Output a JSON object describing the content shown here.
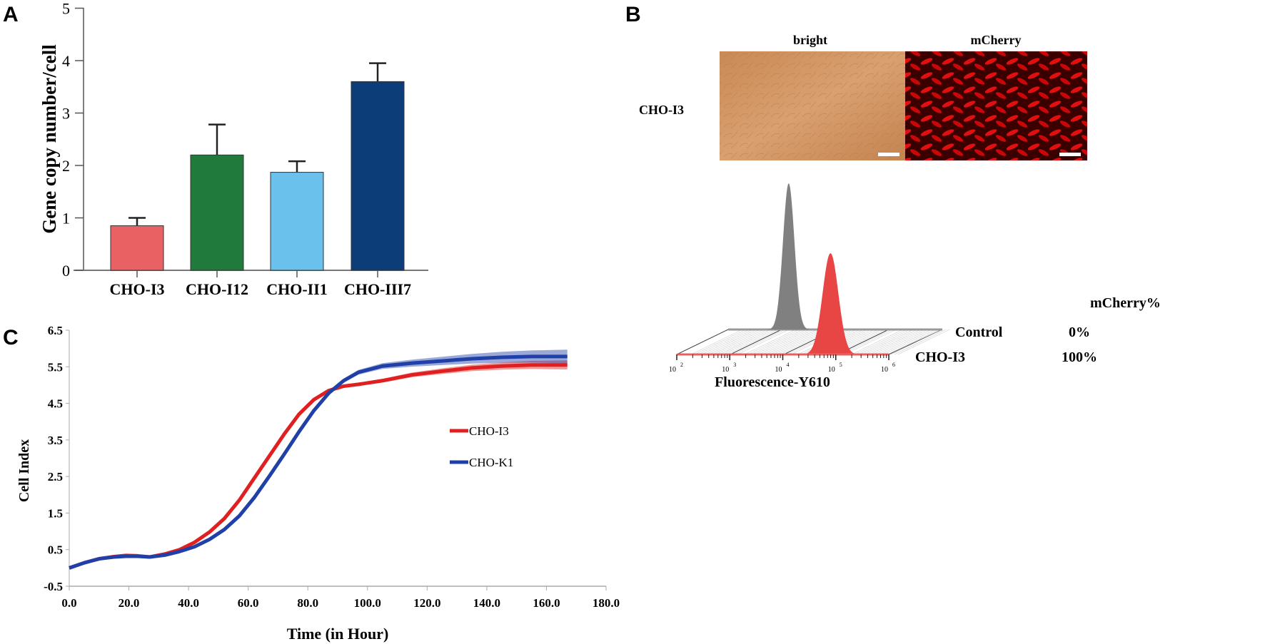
{
  "panels": {
    "a": "A",
    "b": "B",
    "c": "C"
  },
  "chart_data": [
    {
      "type": "bar",
      "title": "",
      "xlabel": "",
      "ylabel": "Gene copy number/cell",
      "ylim": [
        0,
        5
      ],
      "yticks": [
        "0",
        "1",
        "2",
        "3",
        "4",
        "5"
      ],
      "categories": [
        "CHO-I3",
        "CHO-I12",
        "CHO-II1",
        "CHO-III7"
      ],
      "values": [
        0.85,
        2.2,
        1.87,
        3.6
      ],
      "error": [
        0.15,
        0.58,
        0.21,
        0.35
      ],
      "colors": [
        "#e86264",
        "#1f7a3c",
        "#69c1ec",
        "#0c3d78"
      ]
    },
    {
      "type": "histogram",
      "image_labels": {
        "bright": "bright",
        "mcherry": "mCherry",
        "row": "CHO-I3"
      },
      "xlabel": "Fluorescence-Y610",
      "xticks": [
        "10",
        "10",
        "10",
        "10",
        "10"
      ],
      "xtick_exp": [
        "2",
        "3",
        "4",
        "5",
        "6"
      ],
      "xscale": "log",
      "column_header": "mCherry%",
      "series": [
        {
          "name": "Control",
          "percent": "0%",
          "peak_log10": 3.6,
          "color": "#808080"
        },
        {
          "name": "CHO-I3",
          "percent": "100%",
          "peak_log10": 4.9,
          "color": "#e84545"
        }
      ]
    },
    {
      "type": "line",
      "xlabel": "Time (in Hour)",
      "ylabel": "Cell Index",
      "xlim": [
        0,
        180
      ],
      "ylim": [
        -0.5,
        6.5
      ],
      "xticks": [
        "0.0",
        "20.0",
        "40.0",
        "60.0",
        "80.0",
        "100.0",
        "120.0",
        "140.0",
        "160.0",
        "180.0"
      ],
      "yticks": [
        "-0.5",
        "0.5",
        "1.5",
        "2.5",
        "3.5",
        "4.5",
        "5.5",
        "6.5"
      ],
      "legend": "center-right",
      "series": [
        {
          "name": "CHO-I3",
          "color": "#e02020",
          "x": [
            0,
            5,
            10,
            15,
            19,
            23,
            27,
            32,
            37,
            42,
            47,
            52,
            57,
            62,
            67,
            72,
            77,
            82,
            87,
            92,
            97,
            105,
            115,
            125,
            135,
            145,
            155,
            167
          ],
          "y": [
            0,
            0.14,
            0.25,
            0.31,
            0.34,
            0.33,
            0.3,
            0.38,
            0.5,
            0.7,
            0.98,
            1.35,
            1.85,
            2.45,
            3.05,
            3.65,
            4.2,
            4.6,
            4.85,
            4.97,
            5.02,
            5.12,
            5.28,
            5.38,
            5.47,
            5.52,
            5.55,
            5.55
          ]
        },
        {
          "name": "CHO-K1",
          "color": "#2040a8",
          "x": [
            0,
            5,
            10,
            15,
            19,
            23,
            27,
            32,
            37,
            42,
            47,
            52,
            57,
            62,
            67,
            72,
            77,
            82,
            87,
            92,
            97,
            105,
            115,
            125,
            135,
            145,
            155,
            167
          ],
          "y": [
            0,
            0.14,
            0.25,
            0.3,
            0.32,
            0.32,
            0.3,
            0.35,
            0.45,
            0.58,
            0.78,
            1.05,
            1.42,
            1.92,
            2.5,
            3.1,
            3.72,
            4.3,
            4.78,
            5.12,
            5.35,
            5.52,
            5.6,
            5.66,
            5.72,
            5.76,
            5.78,
            5.78
          ]
        }
      ]
    }
  ]
}
